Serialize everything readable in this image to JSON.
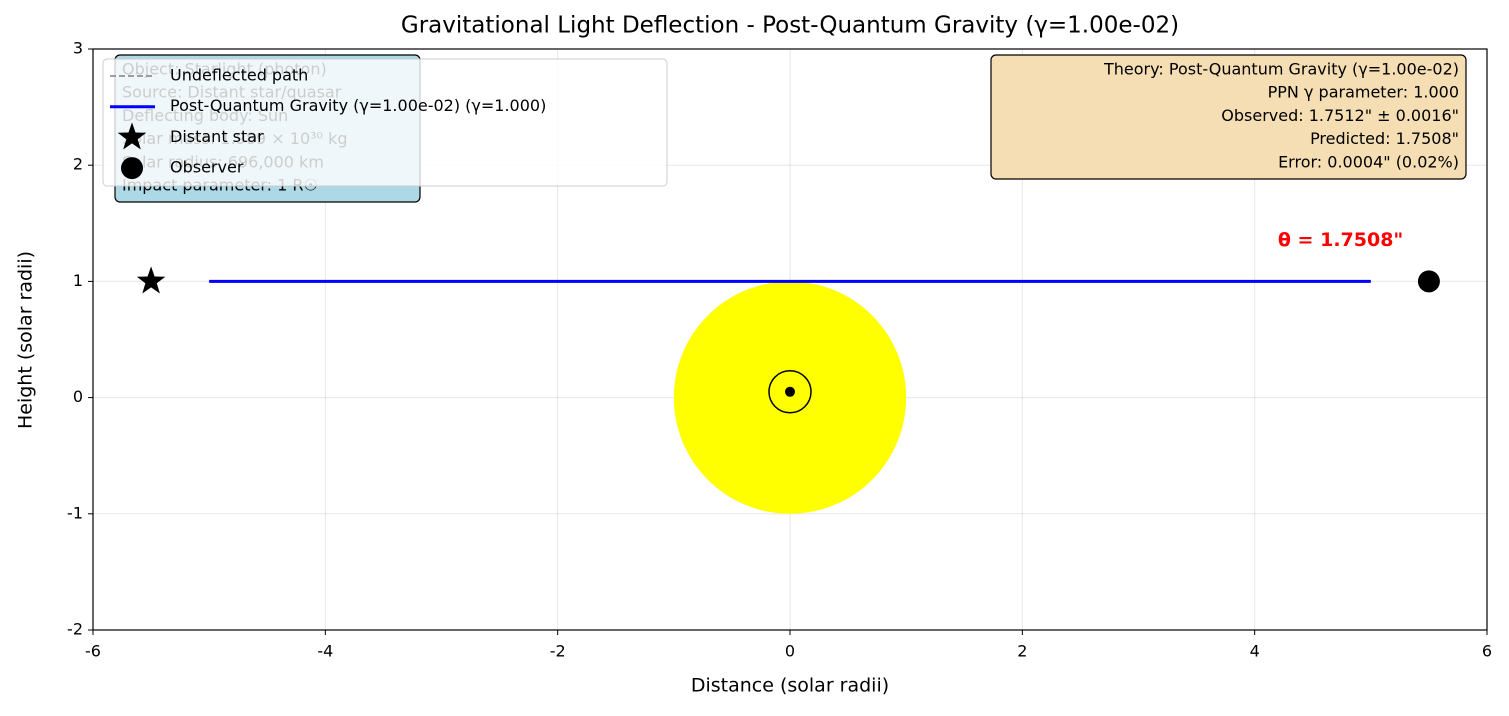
{
  "chart_data": {
    "type": "line",
    "title": "Gravitational Light Deflection - Post-Quantum Gravity (γ=1.00e-02)",
    "x_label": "Distance (solar radii)",
    "y_label": "Height (solar radii)",
    "xlim": [
      -6,
      6
    ],
    "ylim": [
      -2,
      3
    ],
    "xticks": [
      -6,
      -4,
      -2,
      0,
      2,
      4,
      6
    ],
    "yticks": [
      -2,
      -1,
      0,
      1,
      2,
      3
    ],
    "grid": true,
    "legend": "upper left",
    "series": [
      {
        "name": "Undeflected path",
        "color": "#808080",
        "dashed": true,
        "x": [
          -5,
          5
        ],
        "values": [
          1,
          1
        ]
      },
      {
        "name": "Post-Quantum Gravity (γ=1.00e-02) (γ=1.000)",
        "color": "#0000ff",
        "dashed": false,
        "x": [
          -5,
          5
        ],
        "values": [
          1,
          1
        ]
      }
    ],
    "points": [
      {
        "name": "Distant star",
        "marker": "star",
        "color": "#000000",
        "x": -5.5,
        "y": 1
      },
      {
        "name": "Observer",
        "marker": "circle",
        "color": "#000000",
        "x": 5.5,
        "y": 1
      }
    ],
    "sun": {
      "x": 0,
      "y": 0,
      "radius": 1,
      "color": "#ffff00",
      "symbol_y": 0.05
    },
    "annotation": {
      "text": "θ = 1.7508\"",
      "x": 4.2,
      "y": 1.35,
      "color": "#ff0000"
    },
    "info_box": [
      "Object: Starlight (photon)",
      "Source: Distant star/quasar",
      "Deflecting body: Sun",
      "Solar mass: 1.989 × 10³⁰ kg",
      "Solar radius: 696,000 km",
      "Impact parameter: 1 R☉"
    ],
    "theory_box": [
      "Theory: Post-Quantum Gravity (γ=1.00e-02)",
      "PPN γ parameter: 1.000",
      "Observed: 1.7512\" ± 0.0016\"",
      "Predicted: 1.7508\"",
      "Error: 0.0004\" (0.02%)"
    ]
  }
}
